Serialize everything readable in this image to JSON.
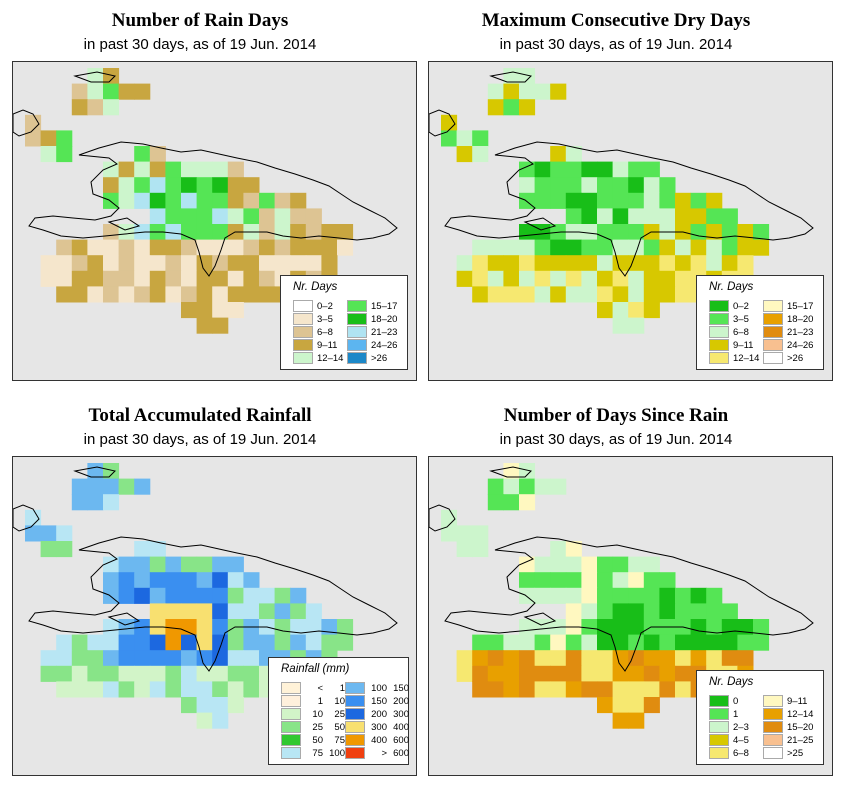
{
  "panels": [
    {
      "id": "rain-days",
      "title": "Number of Rain Days",
      "subtitle": "in past 30 days, as of  19 Jun. 2014",
      "legend_title": "Nr. Days",
      "legend": [
        {
          "label": "0–2",
          "color": "#ffffff"
        },
        {
          "label": "3–5",
          "color": "#f5e6cc"
        },
        {
          "label": "6–8",
          "color": "#ddc493"
        },
        {
          "label": "9–11",
          "color": "#c8a640"
        },
        {
          "label": "12–14",
          "color": "#ccf5cc"
        },
        {
          "label": "15–17",
          "color": "#55e555"
        },
        {
          "label": "18–20",
          "color": "#18be18"
        },
        {
          "label": "21–23",
          "color": "#b0e4f2"
        },
        {
          "label": "24–26",
          "color": "#5cb5f0"
        },
        {
          "label": ">26",
          "color": "#1c88c8"
        }
      ]
    },
    {
      "id": "dry-days",
      "title": "Maximum Consecutive Dry Days",
      "subtitle": "in past 30 days, as of  19 Jun. 2014",
      "legend_title": "Nr. Days",
      "legend": [
        {
          "label": "0–2",
          "color": "#18be18"
        },
        {
          "label": "3–5",
          "color": "#55e555"
        },
        {
          "label": "6–8",
          "color": "#ccf5cc"
        },
        {
          "label": "9–11",
          "color": "#d7c800"
        },
        {
          "label": "12–14",
          "color": "#f6e870"
        },
        {
          "label": "15–17",
          "color": "#fff8c0"
        },
        {
          "label": "18–20",
          "color": "#e8a000"
        },
        {
          "label": "21–23",
          "color": "#e08c10"
        },
        {
          "label": "24–26",
          "color": "#f8c090"
        },
        {
          "label": ">26",
          "color": "#ffffff"
        }
      ]
    },
    {
      "id": "rainfall",
      "title": "Total Accumulated Rainfall",
      "subtitle": "in past 30 days, as of  19 Jun. 2014",
      "legend_title": "Rainfall (mm)",
      "legend": [
        {
          "lo": "<",
          "hi": "1",
          "color": "#fff2d8"
        },
        {
          "lo": "1",
          "hi": "10",
          "color": "#fff0dc"
        },
        {
          "lo": "10",
          "hi": "25",
          "color": "#d2f4c8"
        },
        {
          "lo": "25",
          "hi": "50",
          "color": "#88e488"
        },
        {
          "lo": "50",
          "hi": "75",
          "color": "#30c830"
        },
        {
          "lo": "75",
          "hi": "100",
          "color": "#b8e6f4"
        },
        {
          "lo": "100",
          "hi": "150",
          "color": "#6cb8f0"
        },
        {
          "lo": "150",
          "hi": "200",
          "color": "#3a8ff0"
        },
        {
          "lo": "200",
          "hi": "300",
          "color": "#1c68e0"
        },
        {
          "lo": "300",
          "hi": "400",
          "color": "#f8e070"
        },
        {
          "lo": "400",
          "hi": "600",
          "color": "#f09800"
        },
        {
          "lo": ">",
          "hi": "600",
          "color": "#f04010"
        }
      ]
    },
    {
      "id": "days-since-rain",
      "title": "Number of Days Since Rain",
      "subtitle": "in past 30 days, as of  19 Jun. 2014",
      "legend_title": "Nr. Days",
      "legend": [
        {
          "label": "0",
          "color": "#18be18"
        },
        {
          "label": "1",
          "color": "#55e555"
        },
        {
          "label": "2–3",
          "color": "#ccf5cc"
        },
        {
          "label": "4–5",
          "color": "#d7c800"
        },
        {
          "label": "6–8",
          "color": "#f6e870"
        },
        {
          "label": "9–11",
          "color": "#fff8c0"
        },
        {
          "label": "12–14",
          "color": "#e8a000"
        },
        {
          "label": "15–20",
          "color": "#e08c10"
        },
        {
          "label": "21–25",
          "color": "#f8c090"
        },
        {
          "label": ">25",
          "color": "#ffffff"
        }
      ]
    }
  ]
}
